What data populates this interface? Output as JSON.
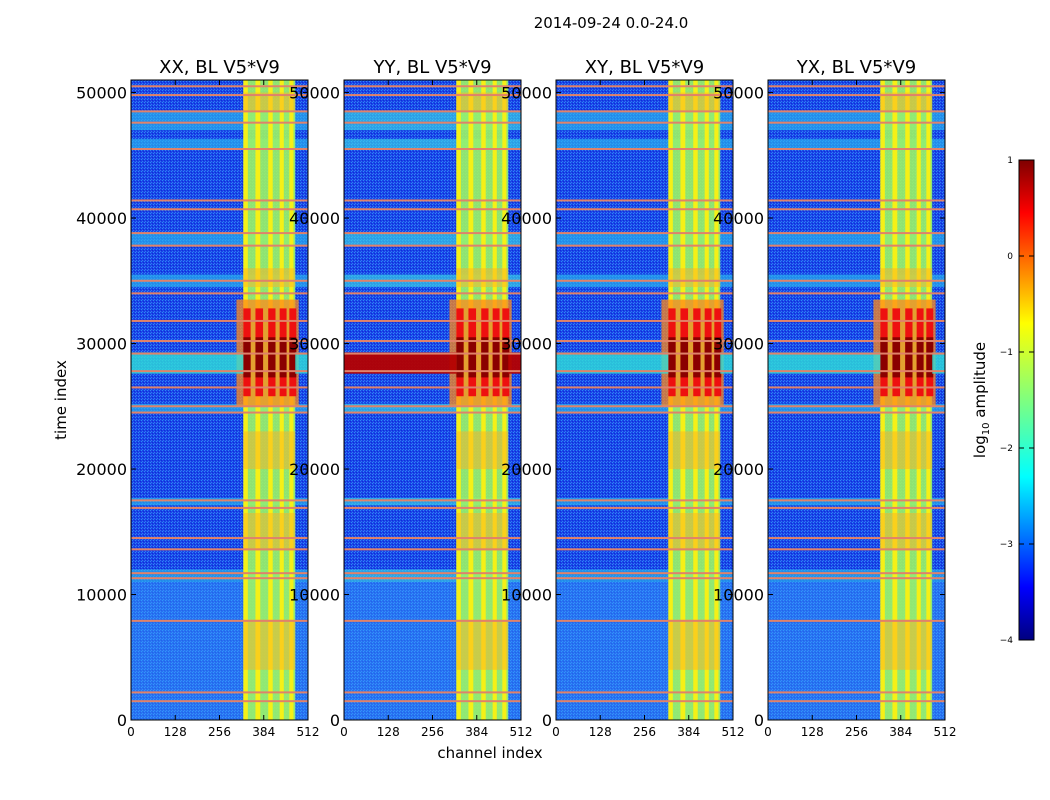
{
  "chart_data": {
    "type": "heatmap",
    "title": "2014-09-24 0.0-24.0",
    "xlabel": "channel index",
    "ylabel": "time index",
    "xlim": [
      0,
      512
    ],
    "ylim": [
      0,
      51000
    ],
    "x_ticks": [
      0,
      128,
      256,
      384,
      512
    ],
    "y_ticks": [
      0,
      10000,
      20000,
      30000,
      40000,
      50000
    ],
    "panels": [
      {
        "title": "XX, BL V5*V9",
        "corr": "XX"
      },
      {
        "title": "YY, BL V5*V9",
        "corr": "YY"
      },
      {
        "title": "XY, BL V5*V9",
        "corr": "XY"
      },
      {
        "title": "YX, BL V5*V9",
        "corr": "YX"
      }
    ],
    "colorbar": {
      "label_prefix": "log",
      "label_sub": "10",
      "label_suffix": " amplitude",
      "range": [
        -4,
        1
      ],
      "ticks": [
        1,
        0,
        -1,
        -2,
        -3,
        -4
      ],
      "tick_labels": [
        "1",
        "0",
        "−1",
        "−2",
        "−3",
        "−4"
      ],
      "colormap": "jet"
    },
    "features": {
      "rfi_channel_band": [
        325,
        475
      ],
      "rfi_stripe_channels": [
        [
          325,
          338
        ],
        [
          360,
          374
        ],
        [
          397,
          410
        ],
        [
          430,
          442
        ],
        [
          458,
          470
        ]
      ],
      "strong_event_time_range": [
        27000,
        31000
      ],
      "flagged_time_rows": [
        1500,
        2200,
        7900,
        11300,
        11700,
        13600,
        14500,
        16900,
        17500,
        24500,
        25000,
        26500,
        27800,
        29200,
        30200,
        31800,
        34000,
        35000,
        37800,
        38800,
        40700,
        41400,
        45500,
        47600,
        48500,
        49800,
        50500
      ]
    }
  },
  "colors": {
    "background": "#ffffff",
    "axes": "#000000",
    "jet": [
      "#00007f",
      "#0000ff",
      "#007fff",
      "#00ffff",
      "#7fff7f",
      "#ffff00",
      "#ff7f00",
      "#ff0000",
      "#7f0000"
    ]
  }
}
